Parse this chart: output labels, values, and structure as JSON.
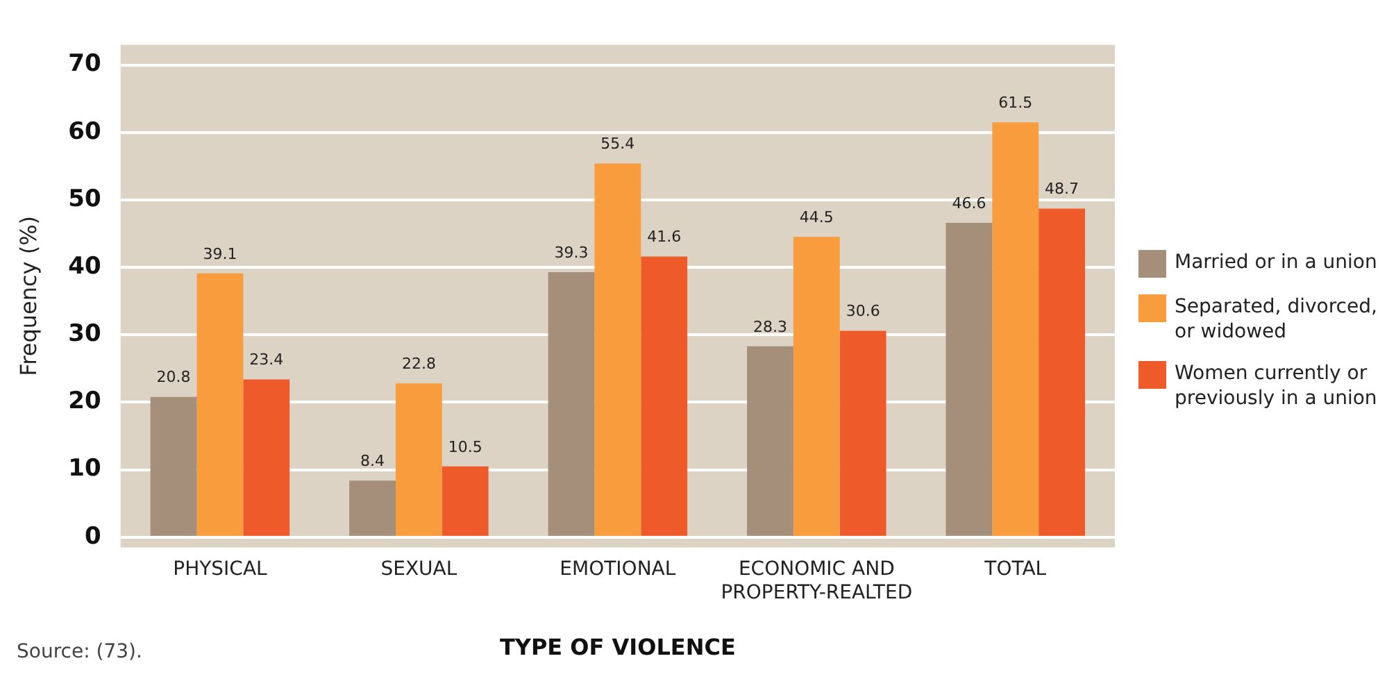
{
  "chart_data": {
    "type": "bar",
    "xlabel": "TYPE OF VIOLENCE",
    "ylabel": "Frequency (%)",
    "categories": [
      "PHYSICAL",
      "SEXUAL",
      "EMOTIONAL",
      "ECONOMIC AND PROPERTY-REALTED",
      "TOTAL"
    ],
    "series": [
      {
        "name": "Married or in a union",
        "color": "#a58e7a",
        "values": [
          20.8,
          8.4,
          39.3,
          28.3,
          46.6
        ]
      },
      {
        "name": "Separated, divorced, or widowed",
        "color": "#f89c3e",
        "values": [
          39.1,
          22.8,
          55.4,
          44.5,
          61.5
        ]
      },
      {
        "name": "Women currently or previously in a union",
        "color": "#ef5a2a",
        "values": [
          23.4,
          10.5,
          41.6,
          30.6,
          48.7
        ]
      }
    ],
    "ylim": [
      -1.5,
      73
    ],
    "yticks": [
      0,
      10,
      20,
      30,
      40,
      50,
      60,
      70
    ],
    "grid": "y",
    "legend": "right",
    "data_labels": true,
    "annotations": [
      "Source: (73)."
    ]
  }
}
